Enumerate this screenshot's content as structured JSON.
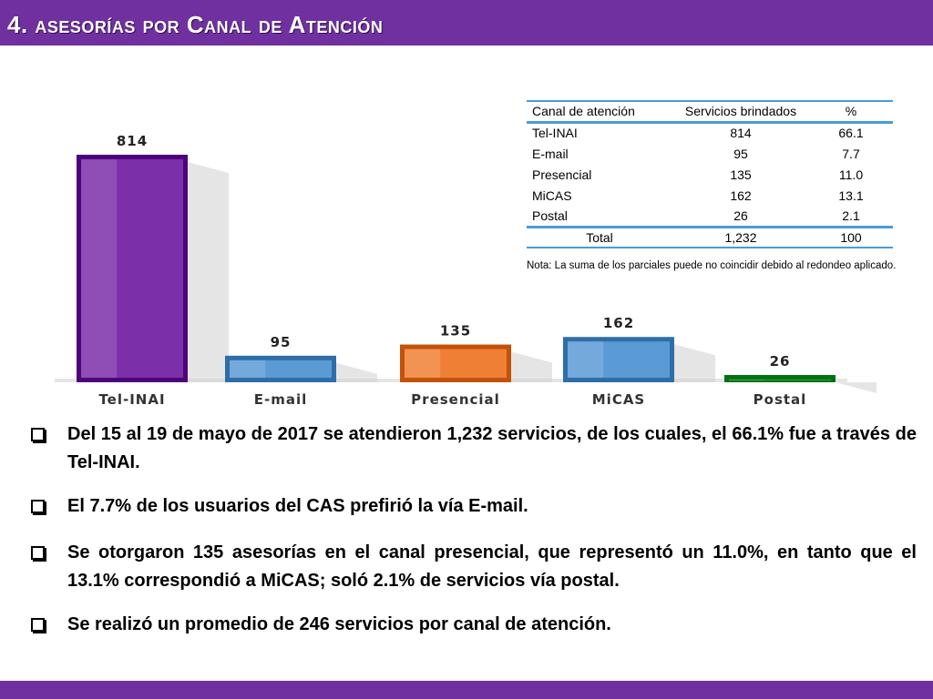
{
  "header": {
    "title": "4. asesorías por Canal de Atención"
  },
  "colors": {
    "header_bg": "#7030a0",
    "bar_tel_inai": "#7b2fa8",
    "bar_email": "#5b9bd5",
    "bar_presencial": "#f07f36",
    "bar_micas": "#5b9bd5",
    "bar_postal": "#2e9e3e",
    "table_rule": "#4a9bd8"
  },
  "chart_data": {
    "type": "bar",
    "categories": [
      "Tel-INAI",
      "E-mail",
      "Presencial",
      "MiCAS",
      "Postal"
    ],
    "values": [
      814,
      95,
      135,
      162,
      26
    ],
    "data_labels": [
      "814",
      "95",
      "135",
      "162",
      "26"
    ],
    "colors": [
      "#7b2fa8",
      "#5b9bd5",
      "#f07f36",
      "#5b9bd5",
      "#2e9e3e"
    ],
    "ylim": [
      0,
      814
    ],
    "grid": false,
    "legend": "none"
  },
  "table": {
    "headers": [
      "Canal de atención",
      "Servicios brindados",
      "%"
    ],
    "rows": [
      [
        "Tel-INAI",
        "814",
        "66.1"
      ],
      [
        "E-mail",
        "95",
        "7.7"
      ],
      [
        "Presencial",
        "135",
        "11.0"
      ],
      [
        "MiCAS",
        "162",
        "13.1"
      ],
      [
        "Postal",
        "26",
        "2.1"
      ]
    ],
    "total": [
      "Total",
      "1,232",
      "100"
    ],
    "note": "Nota: La suma de los parciales puede no coincidir debido al redondeo aplicado."
  },
  "bullets": [
    "Del 15 al 19 de mayo de 2017 se atendieron 1,232 servicios, de los cuales, el 66.1% fue a través de Tel-INAI.",
    "El 7.7% de los usuarios del CAS prefirió la vía E-mail.",
    "Se otorgaron 135 asesorías en el canal presencial, que representó un 11.0%, en tanto que el 13.1% correspondió a MiCAS; soló 2.1% de servicios vía postal.",
    "Se realizó un promedio de 246 servicios por canal de atención."
  ]
}
